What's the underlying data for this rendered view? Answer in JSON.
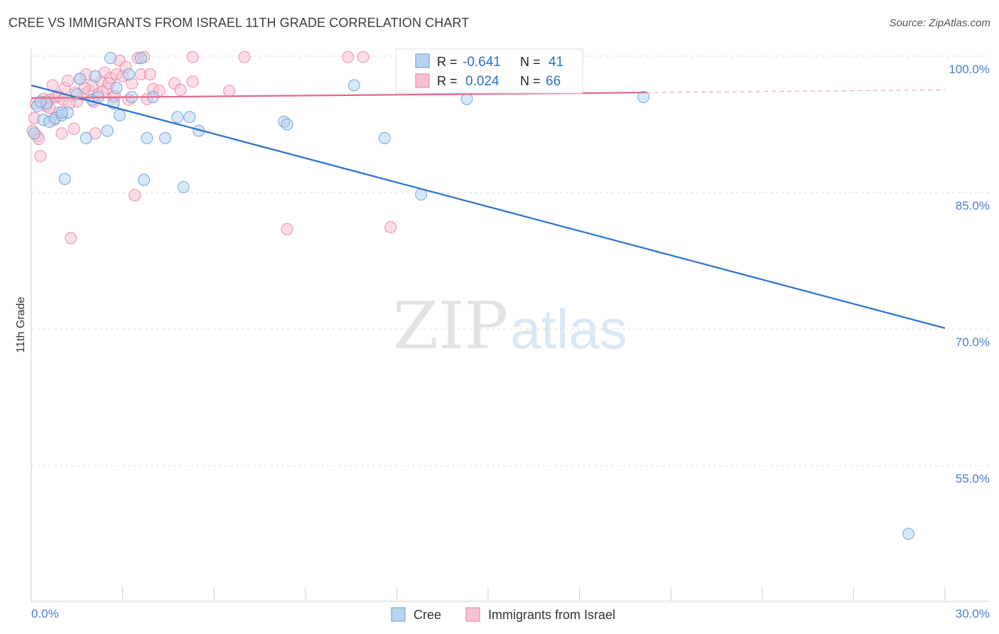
{
  "header": {
    "title": "CREE VS IMMIGRANTS FROM ISRAEL 11TH GRADE CORRELATION CHART",
    "source": "Source: ZipAtlas.com"
  },
  "watermark": {
    "zip": "ZIP",
    "atlas": "atlas"
  },
  "colors": {
    "cree": "#5b9bd5",
    "cree_fill": "#b8d3f0",
    "cree_line": "#2a72cc",
    "israel": "#e87fa0",
    "israel_fill": "#f7c1d1",
    "israel_line": "#e3688e",
    "tick_label": "#4a7fc9",
    "grid": "#dddddd"
  },
  "legend_top": {
    "rows": [
      {
        "r_label": "R = ",
        "r_value": "-0.641",
        "n_label": "N = ",
        "n_value": "41"
      },
      {
        "r_label": "R = ",
        "r_value": "0.024",
        "n_label": "N = ",
        "n_value": "66"
      }
    ]
  },
  "chart_data": {
    "type": "scatter",
    "title": "CREE VS IMMIGRANTS FROM ISRAEL 11TH GRADE CORRELATION CHART",
    "xlabel": "",
    "ylabel": "11th Grade",
    "xlim": [
      0,
      30
    ],
    "ylim": [
      40,
      102
    ],
    "x_tick_labels": [
      "0.0%",
      "30.0%"
    ],
    "y_ticks": [
      100,
      85,
      70,
      55
    ],
    "y_tick_labels": [
      "100.0%",
      "85.0%",
      "70.0%",
      "55.0%"
    ],
    "grid": true,
    "legend": "bottom-center",
    "series": [
      {
        "name": "Cree",
        "points": [
          [
            0.1,
            91.5
          ],
          [
            0.2,
            94.5
          ],
          [
            0.4,
            93.0
          ],
          [
            0.5,
            94.8
          ],
          [
            0.6,
            92.8
          ],
          [
            0.8,
            93.2
          ],
          [
            1.0,
            93.5
          ],
          [
            1.1,
            86.5
          ],
          [
            1.2,
            93.8
          ],
          [
            1.5,
            95.8
          ],
          [
            1.6,
            97.5
          ],
          [
            1.8,
            91.0
          ],
          [
            2.0,
            95.2
          ],
          [
            2.1,
            97.8
          ],
          [
            2.2,
            95.5
          ],
          [
            2.5,
            91.8
          ],
          [
            2.6,
            99.8
          ],
          [
            2.7,
            94.8
          ],
          [
            2.8,
            96.5
          ],
          [
            2.9,
            93.5
          ],
          [
            3.2,
            98.0
          ],
          [
            3.3,
            95.5
          ],
          [
            3.6,
            99.8
          ],
          [
            3.7,
            86.4
          ],
          [
            3.8,
            91.0
          ],
          [
            4.0,
            95.5
          ],
          [
            4.4,
            91.0
          ],
          [
            4.8,
            93.3
          ],
          [
            5.0,
            85.6
          ],
          [
            5.2,
            93.3
          ],
          [
            5.5,
            91.8
          ],
          [
            8.3,
            92.8
          ],
          [
            8.4,
            92.5
          ],
          [
            10.6,
            96.8
          ],
          [
            11.6,
            91.0
          ],
          [
            12.8,
            84.8
          ],
          [
            14.3,
            95.3
          ],
          [
            20.1,
            95.5
          ],
          [
            28.8,
            47.5
          ],
          [
            0.3,
            95.0
          ],
          [
            1.0,
            93.8
          ]
        ]
      },
      {
        "name": "Immigrants from Israel",
        "points": [
          [
            0.05,
            91.8
          ],
          [
            0.1,
            93.2
          ],
          [
            0.15,
            94.8
          ],
          [
            0.2,
            91.2
          ],
          [
            0.3,
            89.0
          ],
          [
            0.4,
            95.3
          ],
          [
            0.5,
            94.5
          ],
          [
            0.6,
            95.2
          ],
          [
            0.7,
            96.8
          ],
          [
            0.8,
            95.5
          ],
          [
            0.9,
            93.8
          ],
          [
            1.0,
            91.5
          ],
          [
            1.1,
            96.5
          ],
          [
            1.2,
            97.3
          ],
          [
            1.3,
            80.0
          ],
          [
            1.4,
            92.0
          ],
          [
            1.5,
            95.0
          ],
          [
            1.6,
            97.5
          ],
          [
            1.7,
            95.8
          ],
          [
            1.8,
            98.0
          ],
          [
            1.9,
            96.2
          ],
          [
            2.0,
            96.8
          ],
          [
            2.1,
            91.5
          ],
          [
            2.2,
            95.8
          ],
          [
            2.3,
            97.2
          ],
          [
            2.4,
            98.2
          ],
          [
            2.5,
            96.5
          ],
          [
            2.6,
            97.6
          ],
          [
            2.7,
            95.5
          ],
          [
            2.8,
            98.0
          ],
          [
            2.9,
            99.5
          ],
          [
            3.0,
            97.8
          ],
          [
            3.1,
            98.8
          ],
          [
            3.2,
            95.2
          ],
          [
            3.3,
            97.0
          ],
          [
            3.4,
            84.7
          ],
          [
            3.5,
            99.8
          ],
          [
            3.6,
            98.0
          ],
          [
            3.7,
            99.9
          ],
          [
            3.8,
            95.3
          ],
          [
            3.9,
            98.0
          ],
          [
            4.0,
            96.4
          ],
          [
            4.2,
            96.2
          ],
          [
            4.7,
            97.0
          ],
          [
            4.9,
            96.3
          ],
          [
            5.3,
            97.2
          ],
          [
            5.3,
            99.9
          ],
          [
            6.5,
            96.2
          ],
          [
            7.0,
            99.9
          ],
          [
            8.4,
            81.0
          ],
          [
            10.4,
            99.9
          ],
          [
            10.9,
            99.9
          ],
          [
            11.8,
            81.2
          ],
          [
            0.5,
            95.0
          ],
          [
            0.6,
            94.3
          ],
          [
            0.75,
            93.0
          ],
          [
            0.9,
            95.6
          ],
          [
            1.05,
            95.2
          ],
          [
            1.25,
            94.8
          ],
          [
            1.45,
            96.0
          ],
          [
            1.75,
            96.5
          ],
          [
            2.05,
            95.0
          ],
          [
            2.35,
            96.1
          ],
          [
            2.55,
            97.0
          ],
          [
            2.75,
            95.6
          ],
          [
            0.25,
            90.9
          ]
        ]
      }
    ],
    "trend_lines": [
      {
        "name": "Cree",
        "x": [
          0,
          30
        ],
        "y": [
          96.8,
          70.1
        ],
        "style": "solid"
      },
      {
        "name": "Immigrants from Israel",
        "x": [
          0,
          20.2
        ],
        "y": [
          95.4,
          96.0
        ],
        "style": "solid"
      },
      {
        "name": "Immigrants from Israel",
        "x": [
          20.2,
          30
        ],
        "y": [
          96.0,
          96.3
        ],
        "style": "dashed"
      }
    ]
  },
  "legend_bottom": {
    "items": [
      {
        "label": "Cree"
      },
      {
        "label": "Immigrants from Israel"
      }
    ]
  }
}
